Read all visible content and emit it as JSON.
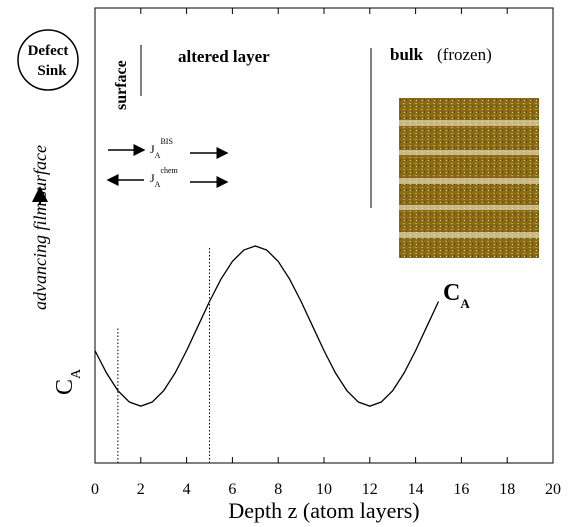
{
  "chart_data": {
    "type": "line",
    "xlabel": "Depth z (atom layers)",
    "ylabel": {
      "main": "C",
      "sub": "A"
    },
    "curve_label": {
      "main": "C",
      "sub": "A"
    },
    "xlim": [
      0,
      20
    ],
    "xticks": [
      0,
      2,
      4,
      6,
      8,
      10,
      12,
      14,
      16,
      18,
      20
    ],
    "ylim": [
      0,
      1
    ],
    "x": [
      0,
      0.5,
      1,
      1.5,
      2,
      2.5,
      3,
      3.5,
      4,
      4.5,
      5,
      5.5,
      6,
      6.5,
      7,
      7.5,
      8,
      8.5,
      9,
      9.5,
      10,
      10.5,
      11,
      11.5,
      12,
      12.5,
      13,
      13.5,
      14,
      14.5,
      15
    ],
    "series": [
      {
        "color": "#000000",
        "values": [
          0.247,
          0.198,
          0.159,
          0.134,
          0.125,
          0.134,
          0.159,
          0.198,
          0.247,
          0.301,
          0.355,
          0.404,
          0.443,
          0.468,
          0.477,
          0.468,
          0.443,
          0.404,
          0.355,
          0.301,
          0.247,
          0.198,
          0.159,
          0.134,
          0.125,
          0.134,
          0.159,
          0.198,
          0.247,
          0.301,
          0.355
        ]
      }
    ],
    "reference_lines": [
      {
        "x": 1,
        "y_top": 0.297
      },
      {
        "x": 5,
        "y_top": 0.477
      }
    ],
    "annotations": {
      "surface": "surface",
      "altered_layer": "altered layer",
      "bulk": "bulk",
      "frozen": "(frozen)",
      "defect": "Defect",
      "sink": "Sink",
      "advancing": "advancing film surface",
      "j_bis": {
        "main": "J",
        "sub": "A",
        "sup": "BIS"
      },
      "j_chem": {
        "main": "J",
        "sub": "A",
        "sup": "chem"
      }
    }
  }
}
